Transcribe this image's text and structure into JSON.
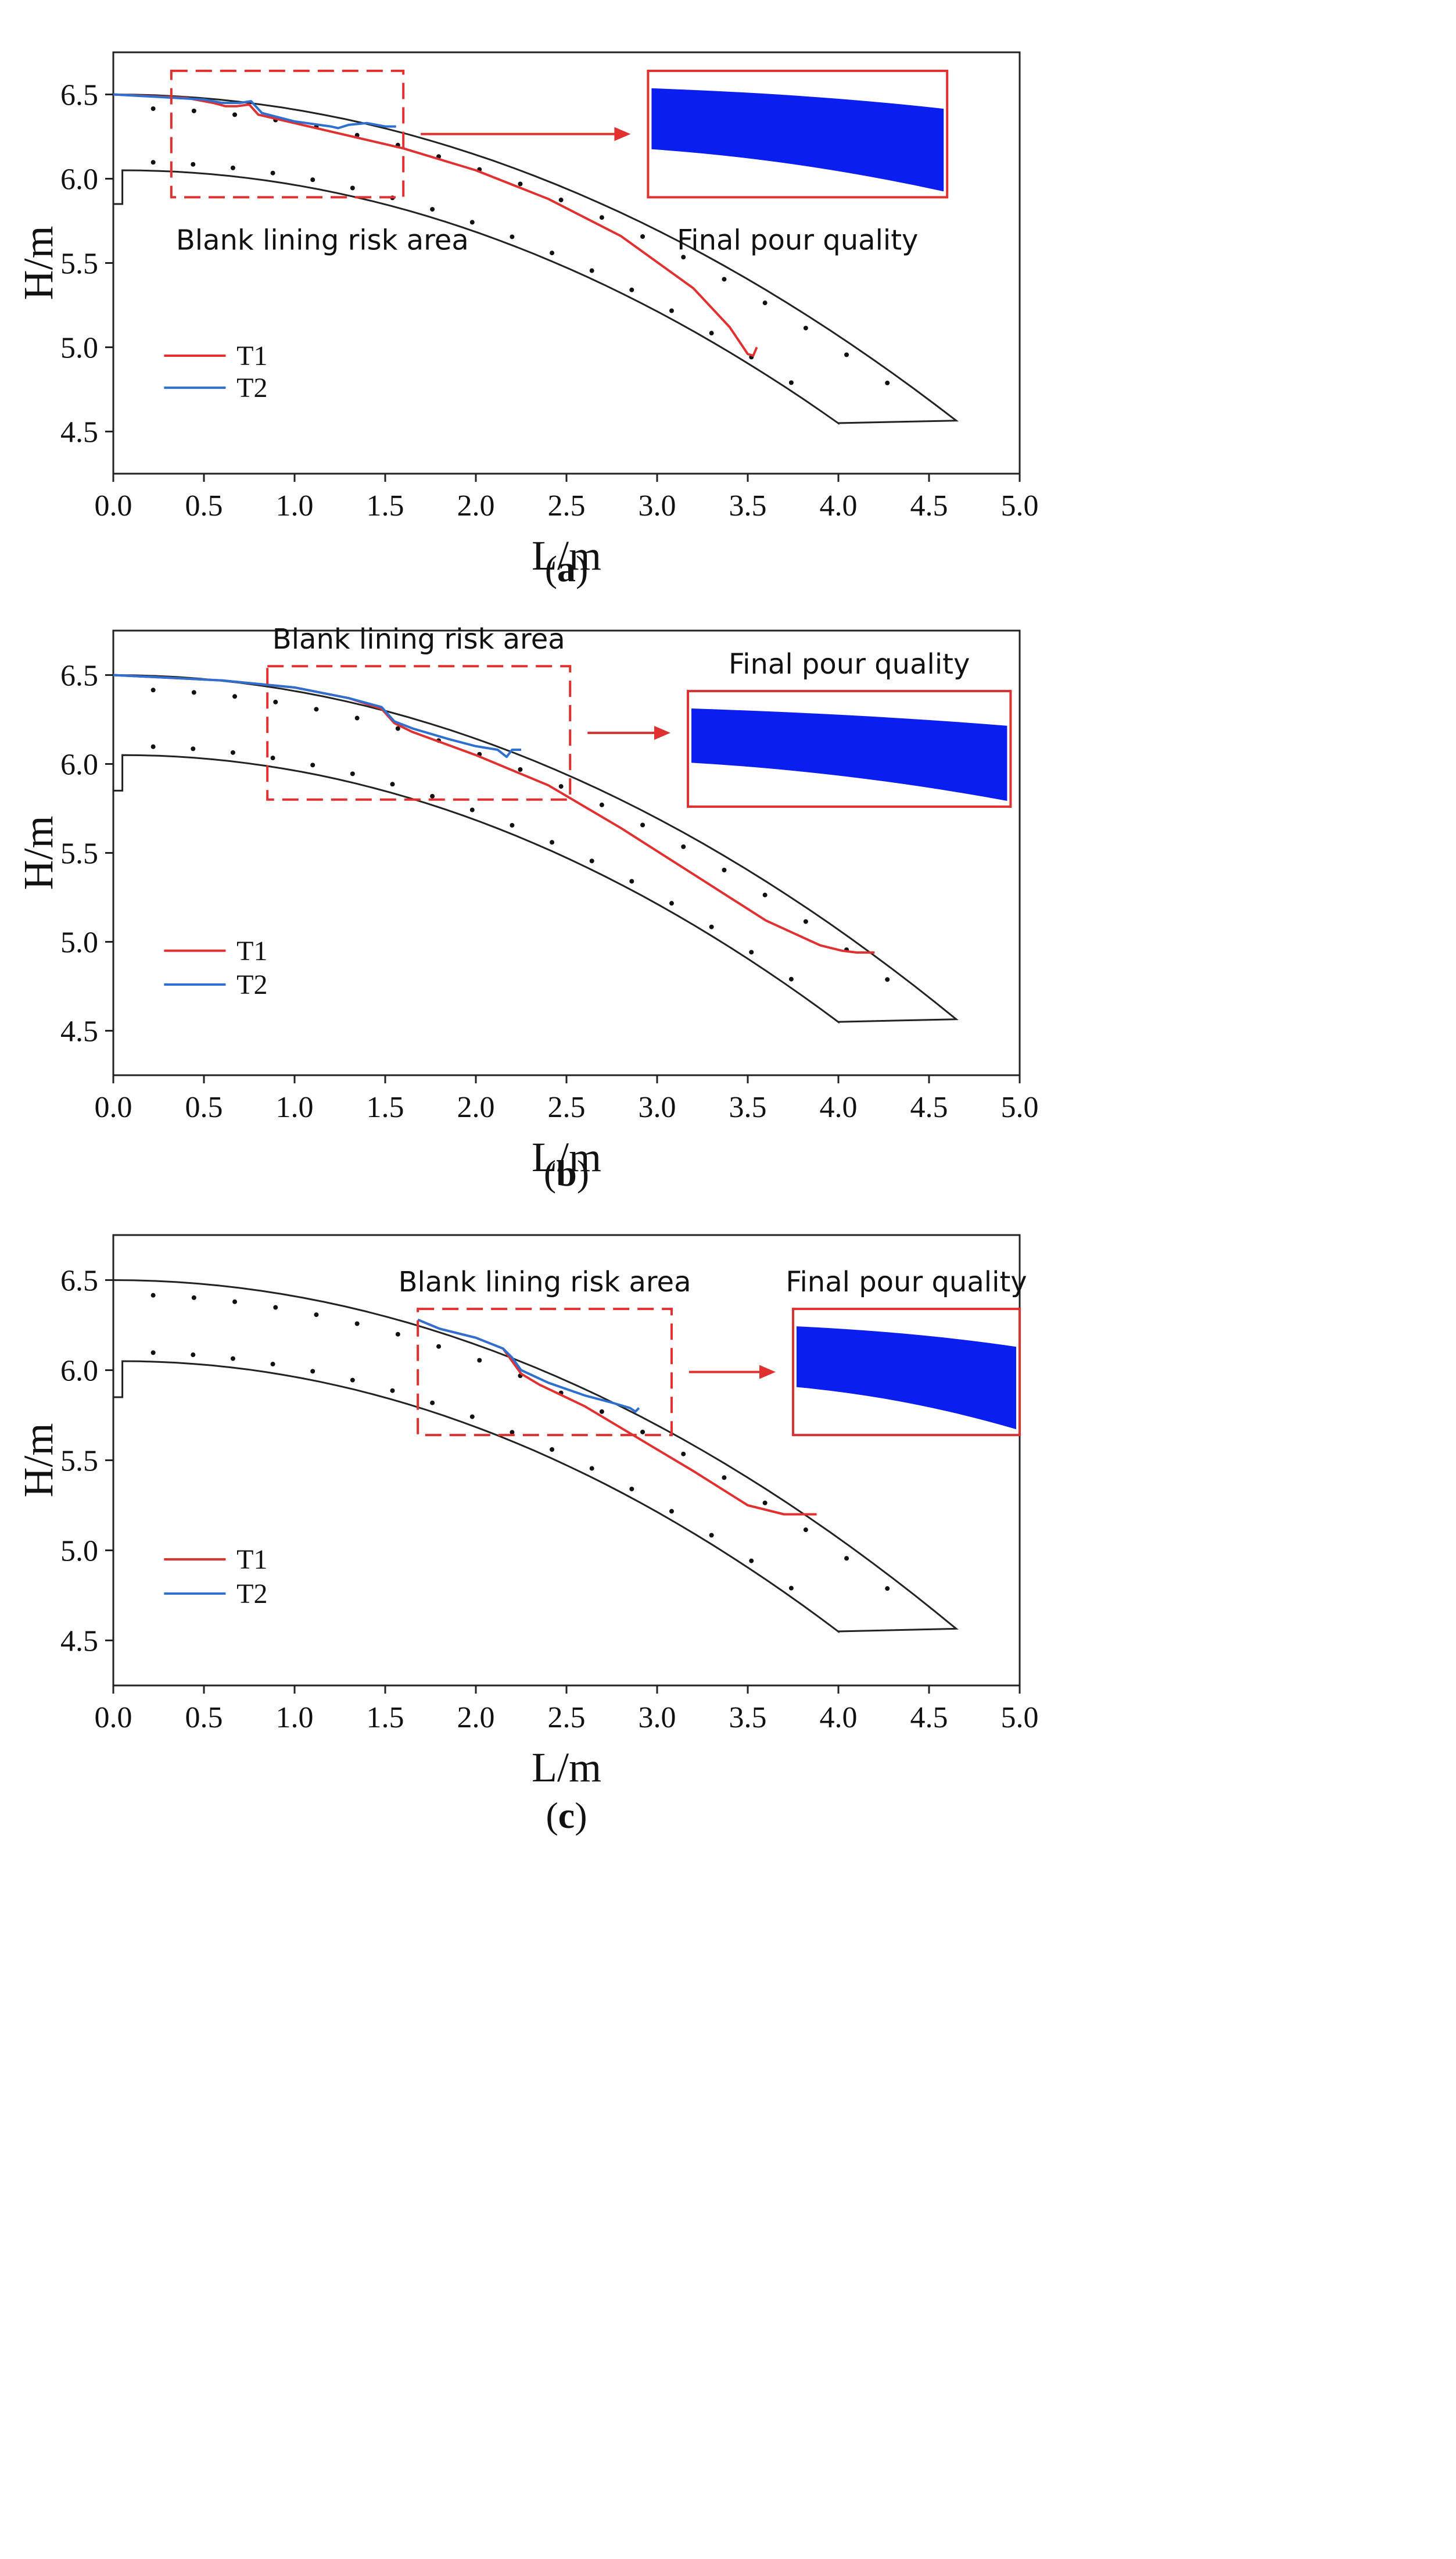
{
  "colors": {
    "t1": "#e03030",
    "t2": "#2e6fd0",
    "box": "#e03030",
    "frame": "#222222",
    "fill": "#0a1ef0"
  },
  "chart_data": [
    {
      "type": "line",
      "panel": "a",
      "panel_label": "a",
      "xlabel": "L/m",
      "ylabel": "H/m",
      "xlim": [
        0.0,
        5.0
      ],
      "ylim": [
        4.25,
        6.75
      ],
      "xticks": [
        "0.0",
        "0.5",
        "1.0",
        "1.5",
        "2.0",
        "2.5",
        "3.0",
        "3.5",
        "4.0",
        "4.5",
        "5.0"
      ],
      "yticks": [
        "4.5",
        "5.0",
        "5.5",
        "6.0",
        "6.5"
      ],
      "legend": [
        "T1",
        "T2"
      ],
      "series": [
        {
          "name": "T1",
          "x": [
            0.0,
            0.4,
            0.55,
            0.62,
            0.68,
            0.75,
            0.8,
            1.2,
            1.6,
            2.0,
            2.4,
            2.8,
            3.2,
            3.4,
            3.5,
            3.53,
            3.55
          ],
          "y": [
            6.5,
            6.48,
            6.45,
            6.43,
            6.43,
            6.44,
            6.38,
            6.28,
            6.18,
            6.05,
            5.88,
            5.66,
            5.35,
            5.12,
            4.96,
            4.95,
            5.0
          ]
        },
        {
          "name": "T2",
          "x": [
            0.0,
            0.5,
            0.6,
            0.7,
            0.76,
            0.82,
            1.0,
            1.2,
            1.24,
            1.3,
            1.4,
            1.5,
            1.56
          ],
          "y": [
            6.5,
            6.47,
            6.45,
            6.45,
            6.46,
            6.39,
            6.34,
            6.31,
            6.3,
            6.32,
            6.33,
            6.31,
            6.31
          ]
        }
      ],
      "annotation": "Blank lining risk area",
      "inset_label": "Final pour quality",
      "risk_box": {
        "x": [
          0.32,
          1.6
        ],
        "y": [
          5.89,
          6.64
        ]
      },
      "inset_span": {
        "x": [
          2.95,
          4.6
        ],
        "y": [
          5.89,
          6.64
        ]
      }
    },
    {
      "type": "line",
      "panel": "b",
      "panel_label": "b",
      "xlabel": "L/m",
      "ylabel": "H/m",
      "xlim": [
        0.0,
        5.0
      ],
      "ylim": [
        4.25,
        6.75
      ],
      "xticks": [
        "0.0",
        "0.5",
        "1.0",
        "1.5",
        "2.0",
        "2.5",
        "3.0",
        "3.5",
        "4.0",
        "4.5",
        "5.0"
      ],
      "yticks": [
        "4.5",
        "5.0",
        "5.5",
        "6.0",
        "6.5"
      ],
      "legend": [
        "T1",
        "T2"
      ],
      "series": [
        {
          "name": "T1",
          "x": [
            0.0,
            0.6,
            1.0,
            1.3,
            1.48,
            1.55,
            1.65,
            2.0,
            2.4,
            2.8,
            3.2,
            3.6,
            3.9,
            4.02,
            4.1,
            4.2
          ],
          "y": [
            6.5,
            6.47,
            6.43,
            6.37,
            6.31,
            6.23,
            6.18,
            6.05,
            5.88,
            5.64,
            5.38,
            5.12,
            4.98,
            4.95,
            4.94,
            4.94
          ]
        },
        {
          "name": "T2",
          "x": [
            0.0,
            0.6,
            1.0,
            1.3,
            1.48,
            1.55,
            1.65,
            1.85,
            2.0,
            2.12,
            2.17,
            2.2,
            2.25
          ],
          "y": [
            6.5,
            6.47,
            6.43,
            6.37,
            6.32,
            6.24,
            6.2,
            6.14,
            6.1,
            6.08,
            6.04,
            6.08,
            6.08
          ]
        }
      ],
      "annotation": "Blank lining risk area",
      "inset_label": "Final pour quality",
      "risk_box": {
        "x": [
          0.85,
          2.52
        ],
        "y": [
          5.8,
          6.55
        ]
      },
      "inset_span": {
        "x": [
          3.17,
          4.95
        ],
        "y": [
          5.76,
          6.41
        ]
      }
    },
    {
      "type": "line",
      "panel": "c",
      "panel_label": "c",
      "xlabel": "L/m",
      "ylabel": "H/m",
      "xlim": [
        0.0,
        5.0
      ],
      "ylim": [
        4.25,
        6.75
      ],
      "xticks": [
        "0.0",
        "0.5",
        "1.0",
        "1.5",
        "2.0",
        "2.5",
        "3.0",
        "3.5",
        "4.0",
        "4.5",
        "5.0"
      ],
      "yticks": [
        "4.5",
        "5.0",
        "5.5",
        "6.0",
        "6.5"
      ],
      "legend": [
        "T1",
        "T2"
      ],
      "series": [
        {
          "name": "T1",
          "x": [
            1.68,
            1.8,
            2.0,
            2.15,
            2.2,
            2.25,
            2.35,
            2.6,
            2.9,
            3.2,
            3.5,
            3.7,
            3.8,
            3.88
          ],
          "y": [
            6.28,
            6.23,
            6.18,
            6.12,
            6.05,
            5.98,
            5.92,
            5.8,
            5.62,
            5.44,
            5.25,
            5.2,
            5.2,
            5.2
          ]
        },
        {
          "name": "T2",
          "x": [
            1.68,
            1.8,
            2.0,
            2.15,
            2.2,
            2.25,
            2.4,
            2.6,
            2.75,
            2.85,
            2.88,
            2.9
          ],
          "y": [
            6.28,
            6.23,
            6.18,
            6.12,
            6.07,
            6.0,
            5.93,
            5.86,
            5.82,
            5.79,
            5.77,
            5.79
          ]
        }
      ],
      "annotation": "Blank lining risk area",
      "inset_label": "Final pour quality",
      "risk_box": {
        "x": [
          1.68,
          3.08
        ],
        "y": [
          5.64,
          6.34
        ]
      },
      "inset_span": {
        "x": [
          3.75,
          5.0
        ],
        "y": [
          5.64,
          6.34
        ]
      }
    }
  ]
}
